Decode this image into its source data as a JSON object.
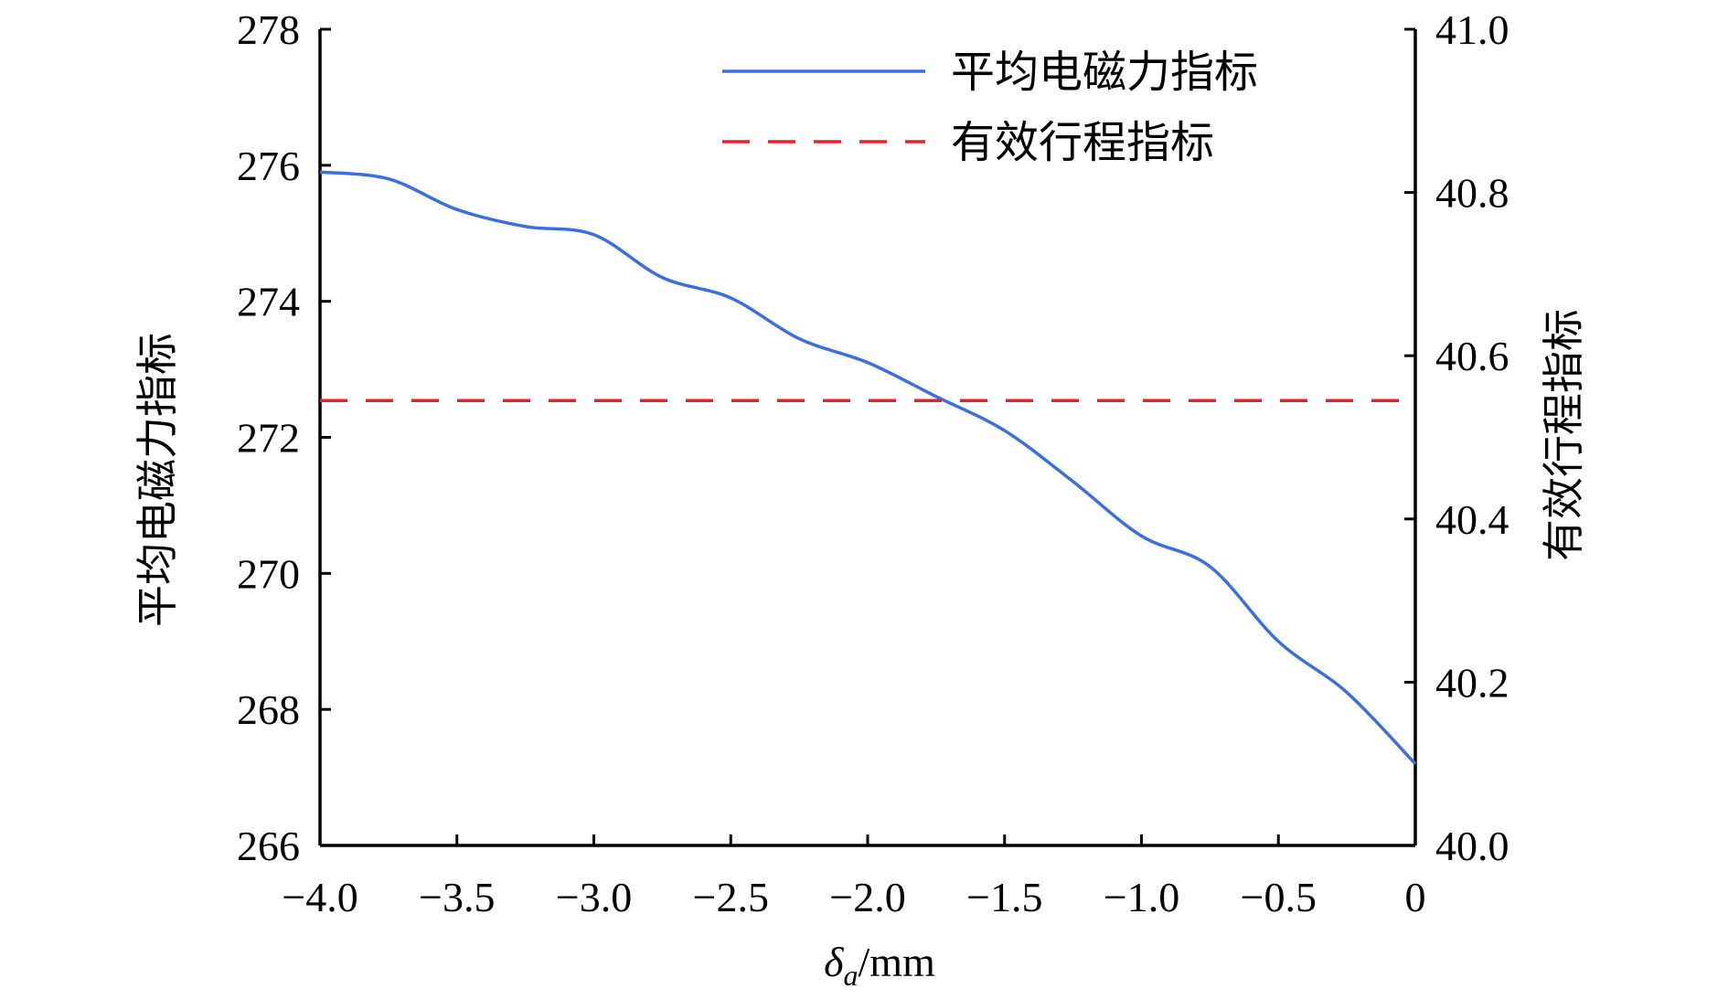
{
  "chart_data": {
    "type": "line",
    "xlabel_symbol": "δ",
    "xlabel_subscript": "a",
    "xlabel_unit": "/mm",
    "ylabel": "平均电磁力指标",
    "y2label": "有效行程指标",
    "xlim": [
      -4.0,
      0
    ],
    "ylim": [
      266,
      278
    ],
    "y2lim": [
      40.0,
      41.0
    ],
    "x_ticks": [
      {
        "value": -4.0,
        "label": "−4.0"
      },
      {
        "value": -3.5,
        "label": "−3.5"
      },
      {
        "value": -3.0,
        "label": "−3.0"
      },
      {
        "value": -2.5,
        "label": "−2.5"
      },
      {
        "value": -2.0,
        "label": "−2.0"
      },
      {
        "value": -1.5,
        "label": "−1.5"
      },
      {
        "value": -1.0,
        "label": "−1.0"
      },
      {
        "value": -0.5,
        "label": "−0.5"
      },
      {
        "value": 0,
        "label": "0"
      }
    ],
    "y_ticks": [
      {
        "value": 266,
        "label": "266"
      },
      {
        "value": 268,
        "label": "268"
      },
      {
        "value": 270,
        "label": "270"
      },
      {
        "value": 272,
        "label": "272"
      },
      {
        "value": 274,
        "label": "274"
      },
      {
        "value": 276,
        "label": "276"
      },
      {
        "value": 278,
        "label": "278"
      }
    ],
    "y2_ticks": [
      {
        "value": 40.0,
        "label": "40.0"
      },
      {
        "value": 40.2,
        "label": "40.2"
      },
      {
        "value": 40.4,
        "label": "40.4"
      },
      {
        "value": 40.6,
        "label": "40.6"
      },
      {
        "value": 40.8,
        "label": "40.8"
      },
      {
        "value": 41.0,
        "label": "41.0"
      }
    ],
    "legend_position": "top-right",
    "grid": false,
    "series": [
      {
        "name": "平均电磁力指标",
        "axis": "left",
        "style": "solid",
        "color": "#3a6fe0",
        "x": [
          -4.0,
          -3.75,
          -3.5,
          -3.25,
          -3.0,
          -2.75,
          -2.5,
          -2.25,
          -2.0,
          -1.75,
          -1.5,
          -1.25,
          -1.0,
          -0.75,
          -0.5,
          -0.25,
          0
        ],
        "y": [
          275.9,
          275.8,
          275.35,
          275.1,
          274.98,
          274.35,
          274.05,
          273.45,
          273.1,
          272.6,
          272.1,
          271.35,
          270.55,
          270.1,
          269.0,
          268.25,
          267.2
        ]
      },
      {
        "name": "有效行程指标",
        "axis": "right",
        "style": "dashed",
        "color": "#e8202a",
        "x": [
          -4.0,
          0
        ],
        "y": [
          40.545,
          40.545
        ]
      }
    ]
  }
}
